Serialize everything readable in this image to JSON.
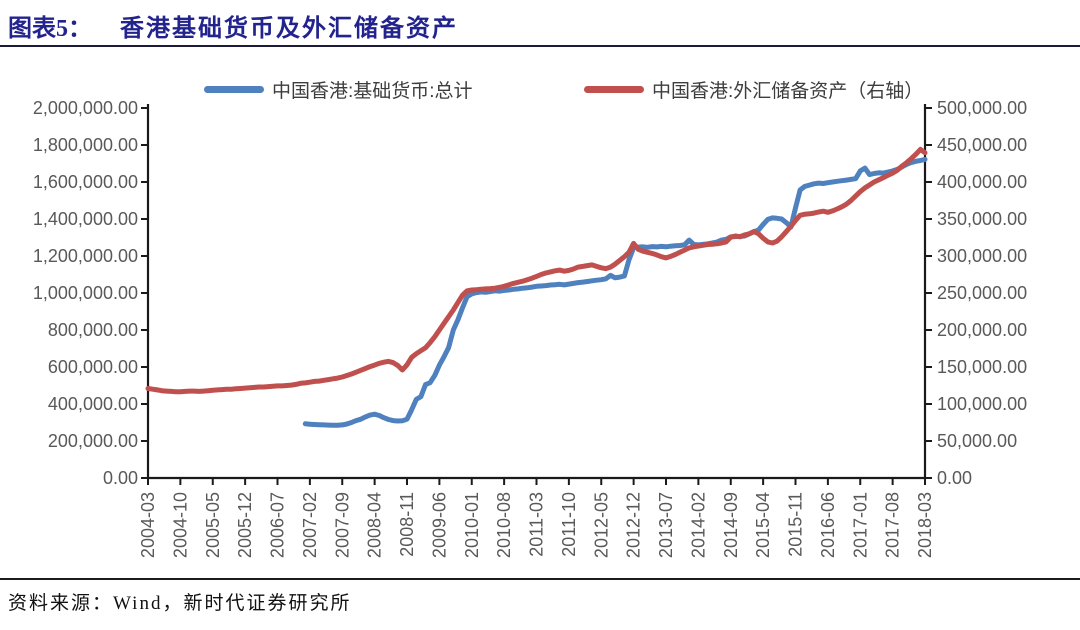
{
  "header": {
    "label": "图表5：",
    "title": "香港基础货币及外汇储备资产"
  },
  "legend": [
    {
      "label": "中国香港:基础货币:总计",
      "color": "#4E81BD"
    },
    {
      "label": "中国香港:外汇储备资产（右轴）",
      "color": "#C0504D"
    }
  ],
  "footer": {
    "source": "资料来源：Wind，新时代证券研究所"
  },
  "chart_data": {
    "type": "line",
    "title": "香港基础货币及外汇储备资产",
    "grid": false,
    "legend_position": "top",
    "x_start": "2004-03",
    "x_end": "2018-03",
    "x_tick_interval_months": 7,
    "x_tick_labels": [
      "2004-03",
      "2004-10",
      "2005-05",
      "2005-12",
      "2006-07",
      "2007-02",
      "2007-09",
      "2008-04",
      "2008-11",
      "2009-06",
      "2010-01",
      "2010-08",
      "2011-03",
      "2011-10",
      "2012-05",
      "2012-12",
      "2013-07",
      "2014-02",
      "2014-09",
      "2015-04",
      "2015-11",
      "2016-06",
      "2017-01",
      "2017-08",
      "2018-03"
    ],
    "left_axis": {
      "min": 0,
      "max": 2000000,
      "tick_step": 200000,
      "tick_labels": [
        "2,000,000.00",
        "1,800,000.00",
        "1,600,000.00",
        "1,400,000.00",
        "1,200,000.00",
        "1,000,000.00",
        "800,000.00",
        "600,000.00",
        "400,000.00",
        "200,000.00",
        "0.00"
      ]
    },
    "right_axis": {
      "min": 0,
      "max": 500000,
      "tick_step": 50000,
      "tick_labels": [
        "500,000.00",
        "450,000.00",
        "400,000.00",
        "350,000.00",
        "300,000.00",
        "250,000.00",
        "200,000.00",
        "150,000.00",
        "100,000.00",
        "50,000.00",
        "0.00"
      ]
    },
    "series": [
      {
        "name": "中国香港:基础货币:总计",
        "axis": "left",
        "color": "#4E81BD",
        "start_month": "2007-01",
        "start_index": 34,
        "values": [
          293000,
          291000,
          289000,
          288000,
          287000,
          286000,
          285500,
          285000,
          287000,
          292000,
          300000,
          310000,
          318000,
          330000,
          340000,
          345000,
          338000,
          326000,
          316000,
          310000,
          308000,
          309000,
          318000,
          368000,
          425000,
          440000,
          505000,
          515000,
          555000,
          610000,
          655000,
          705000,
          800000,
          855000,
          920000,
          980000,
          995000,
          1002000,
          1006000,
          1004000,
          1008000,
          1012000,
          1010000,
          1014000,
          1016000,
          1020000,
          1022000,
          1026000,
          1028000,
          1032000,
          1036000,
          1038000,
          1040000,
          1043000,
          1045000,
          1047000,
          1044000,
          1048000,
          1052000,
          1056000,
          1059000,
          1062000,
          1066000,
          1069000,
          1072000,
          1077000,
          1095000,
          1082000,
          1086000,
          1092000,
          1180000,
          1245000,
          1248000,
          1250000,
          1247000,
          1251000,
          1249000,
          1252000,
          1250000,
          1253000,
          1255000,
          1257000,
          1260000,
          1286000,
          1262000,
          1260000,
          1263000,
          1266000,
          1270000,
          1275000,
          1286000,
          1290000,
          1303000,
          1305000,
          1306000,
          1308000,
          1320000,
          1332000,
          1340000,
          1370000,
          1398000,
          1406000,
          1404000,
          1400000,
          1380000,
          1357000,
          1460000,
          1557000,
          1576000,
          1583000,
          1590000,
          1594000,
          1592000,
          1596000,
          1600000,
          1604000,
          1607000,
          1610000,
          1614000,
          1618000,
          1660000,
          1675000,
          1640000,
          1646000,
          1650000,
          1648000,
          1654000,
          1660000,
          1668000,
          1681000,
          1695000,
          1705000,
          1712000,
          1716000,
          1722000
        ]
      },
      {
        "name": "中国香港:外汇储备资产（右轴）",
        "axis": "right",
        "color": "#C0504D",
        "start_month": "2004-03",
        "start_index": 0,
        "values": [
          121000,
          120000,
          119000,
          118000,
          117500,
          117000,
          116500,
          116500,
          117000,
          117500,
          117500,
          117000,
          117500,
          118000,
          118500,
          119000,
          119500,
          120000,
          120000,
          120500,
          121000,
          121500,
          122000,
          122500,
          123000,
          123000,
          123500,
          124000,
          124500,
          124500,
          125000,
          125500,
          126500,
          128000,
          128500,
          129500,
          130500,
          131000,
          132000,
          133000,
          134000,
          135000,
          136500,
          138500,
          140500,
          143000,
          145500,
          148000,
          150500,
          152500,
          155000,
          156500,
          157500,
          156000,
          152000,
          146000,
          153000,
          163000,
          168000,
          172000,
          176000,
          183000,
          191000,
          200000,
          209000,
          218000,
          227000,
          237000,
          247000,
          253000,
          254000,
          254500,
          255000,
          255500,
          256000,
          256500,
          257500,
          259000,
          261000,
          263000,
          264500,
          266000,
          268000,
          270000,
          272500,
          275000,
          277000,
          278500,
          280000,
          281000,
          279500,
          280500,
          282500,
          285000,
          286000,
          287000,
          288000,
          286000,
          284000,
          283000,
          285000,
          289000,
          294000,
          299000,
          305000,
          317000,
          309000,
          306500,
          305000,
          303500,
          301500,
          299000,
          297500,
          299500,
          302000,
          305000,
          308000,
          311000,
          312500,
          313500,
          314500,
          315500,
          316000,
          316500,
          317500,
          319000,
          325500,
          327000,
          326000,
          328500,
          330000,
          333000,
          330000,
          324000,
          319000,
          317500,
          320000,
          326000,
          333000,
          340000,
          348000,
          355000,
          356500,
          357000,
          358000,
          359500,
          360500,
          359000,
          361000,
          363500,
          366500,
          370000,
          375000,
          381000,
          387000,
          392000,
          396000,
          400000,
          403000,
          406000,
          409000,
          412000,
          416000,
          421500,
          426000,
          431500,
          437500,
          444000,
          439500
        ]
      }
    ]
  }
}
